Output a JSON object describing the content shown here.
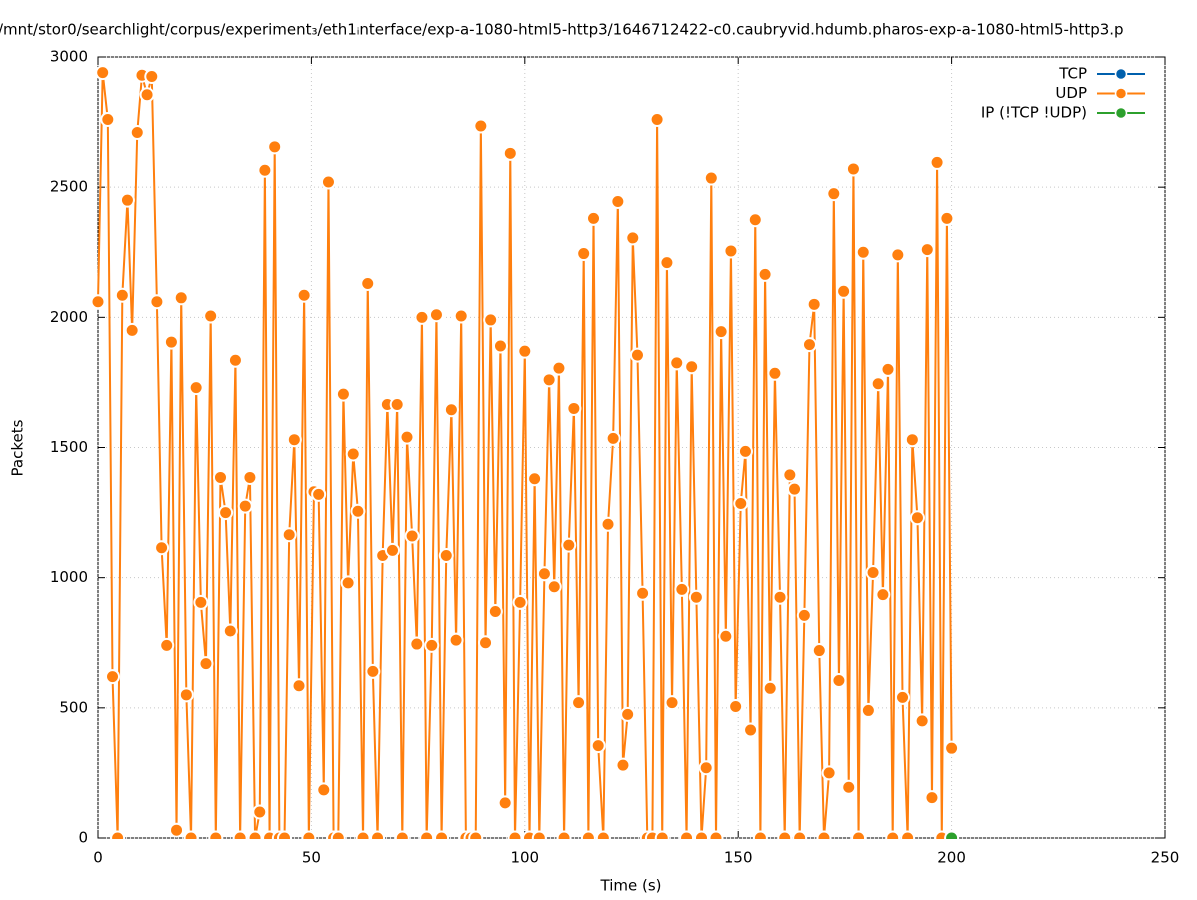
{
  "chart_data": {
    "type": "line",
    "title": "/mnt/stor0/searchlight/corpus/experiment₃/eth1ᵢnterface/exp-a-1080-html5-http3/1646712422-c0.caubryvid.hdumb.pharos-exp-a-1080-html5-http3.p",
    "x_label": "Time (s)",
    "y_label": "Packets",
    "xlim": [
      0,
      250
    ],
    "ylim": [
      0,
      3000
    ],
    "xticks": [
      0,
      50,
      100,
      150,
      200,
      250
    ],
    "yticks": [
      0,
      500,
      1000,
      1500,
      2000,
      2500,
      3000
    ],
    "grid": true,
    "legend": "top-right",
    "series": [
      {
        "name": "TCP",
        "color": "#0060ad",
        "x": [],
        "values": []
      },
      {
        "name": "UDP",
        "color": "#ff7f0e",
        "x": [
          0,
          1.1,
          2.3,
          3.4,
          4.6,
          5.7,
          6.9,
          8.0,
          9.2,
          10.3,
          11.5,
          12.6,
          13.8,
          14.9,
          16.1,
          17.2,
          18.4,
          19.5,
          20.7,
          21.8,
          23.0,
          24.1,
          25.3,
          26.4,
          27.6,
          28.7,
          29.9,
          31.0,
          32.2,
          33.3,
          34.5,
          35.6,
          36.8,
          37.9,
          39.1,
          40.2,
          41.4,
          42.5,
          43.7,
          44.8,
          46.0,
          47.1,
          48.3,
          49.4,
          50.6,
          51.7,
          52.9,
          54.0,
          55.2,
          56.3,
          57.5,
          58.6,
          59.8,
          60.9,
          62.1,
          63.2,
          64.4,
          65.5,
          66.7,
          67.8,
          69.0,
          70.1,
          71.3,
          72.4,
          73.6,
          74.7,
          75.9,
          77.0,
          78.2,
          79.3,
          80.5,
          81.6,
          82.8,
          83.9,
          85.1,
          86.2,
          87.4,
          88.5,
          89.7,
          90.8,
          92.0,
          93.1,
          94.3,
          95.4,
          96.6,
          97.7,
          98.9,
          100.0,
          101.1,
          102.3,
          103.4,
          104.6,
          105.7,
          106.9,
          108.0,
          109.2,
          110.3,
          111.5,
          112.6,
          113.8,
          114.9,
          116.1,
          117.2,
          118.4,
          119.5,
          120.7,
          121.8,
          123.0,
          124.1,
          125.3,
          126.4,
          127.6,
          128.7,
          129.9,
          131.0,
          132.2,
          133.3,
          134.5,
          135.6,
          136.8,
          137.9,
          139.1,
          140.2,
          141.4,
          142.5,
          143.7,
          144.8,
          146.0,
          147.1,
          148.3,
          149.4,
          150.6,
          151.7,
          152.9,
          154.0,
          155.2,
          156.3,
          157.5,
          158.6,
          159.8,
          160.9,
          162.1,
          163.2,
          164.4,
          165.5,
          166.7,
          167.8,
          169.0,
          170.1,
          171.3,
          172.4,
          173.6,
          174.7,
          175.9,
          177.0,
          178.2,
          179.3,
          180.5,
          181.6,
          182.8,
          183.9,
          185.1,
          186.2,
          187.4,
          188.5,
          189.7,
          190.8,
          192.0,
          193.1,
          194.3,
          195.4,
          196.6,
          197.7,
          198.9,
          200
        ],
        "values": [
          2060,
          2940,
          2760,
          620,
          0,
          2085,
          2450,
          1950,
          2710,
          2930,
          2855,
          2925,
          2060,
          1115,
          740,
          1905,
          30,
          2075,
          550,
          0,
          1730,
          905,
          670,
          2005,
          0,
          1385,
          1250,
          795,
          1835,
          0,
          1275,
          1385,
          0,
          100,
          2565,
          0,
          2655,
          0,
          0,
          1165,
          1530,
          585,
          2085,
          0,
          1330,
          1320,
          185,
          2520,
          0,
          0,
          1705,
          980,
          1475,
          1255,
          0,
          2130,
          640,
          0,
          1085,
          1665,
          1105,
          1665,
          0,
          1540,
          1160,
          745,
          2000,
          0,
          740,
          2010,
          0,
          1085,
          1645,
          760,
          2005,
          0,
          0,
          0,
          2735,
          750,
          1990,
          870,
          1890,
          135,
          2630,
          0,
          905,
          1870,
          0,
          1380,
          0,
          1015,
          1760,
          965,
          1805,
          0,
          1125,
          1650,
          520,
          2245,
          0,
          2380,
          355,
          0,
          1205,
          1535,
          2445,
          280,
          475,
          2305,
          1855,
          940,
          0,
          0,
          2760,
          0,
          2210,
          520,
          1825,
          955,
          0,
          1810,
          925,
          0,
          270,
          2535,
          0,
          1945,
          775,
          2255,
          505,
          1285,
          1485,
          415,
          2375,
          0,
          2165,
          575,
          1785,
          925,
          0,
          1395,
          1340,
          0,
          855,
          1895,
          2050,
          720,
          0,
          250,
          2475,
          605,
          2100,
          195,
          2570,
          0,
          2250,
          490,
          1020,
          1745,
          935,
          1800,
          0,
          2240,
          540,
          0,
          1530,
          1230,
          450,
          2260,
          155,
          2595,
          0,
          2380,
          345
        ]
      },
      {
        "name": "IP (!TCP  !UDP)",
        "color": "#2ca02c",
        "x": [
          200
        ],
        "values": [
          0
        ]
      }
    ]
  }
}
